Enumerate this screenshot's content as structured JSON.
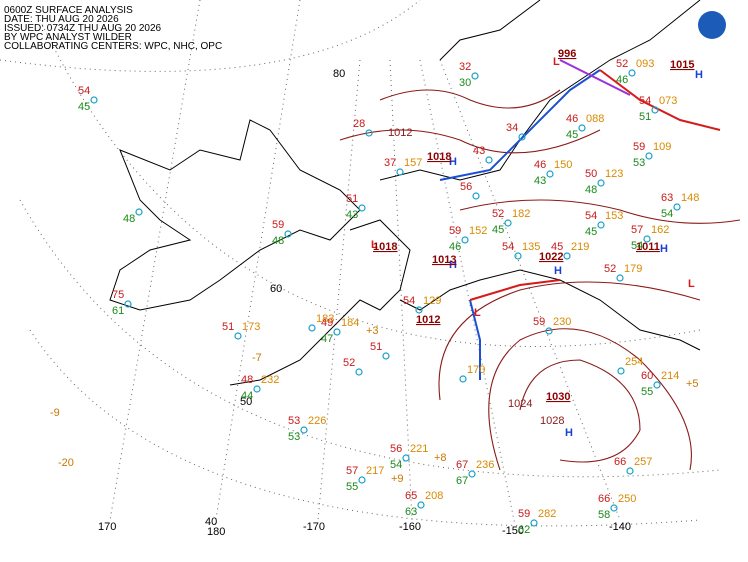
{
  "header": {
    "lines": [
      "0600Z SURFACE ANALYSIS",
      "DATE: THU AUG 20 2026",
      "ISSUED: 0734Z THU AUG 20 2026",
      "BY WPC ANALYST WILDER",
      "COLLABORATING CENTERS: WPC, NHC, OPC"
    ]
  },
  "graticule": {
    "labels": [
      "80",
      "60",
      "50",
      "40",
      "180",
      "170",
      "-170",
      "-160",
      "-150",
      "-140"
    ]
  },
  "pressure_centers": [
    {
      "symbol": "H",
      "value": "1015"
    },
    {
      "symbol": "L",
      "value": "996"
    },
    {
      "symbol": "H",
      "value": "1018"
    },
    {
      "symbol": "L",
      "value": "1018"
    },
    {
      "symbol": "H",
      "value": "1013"
    },
    {
      "symbol": "L",
      "value": "1012"
    },
    {
      "symbol": "H",
      "value": "1022"
    },
    {
      "symbol": "H",
      "value": "1030"
    },
    {
      "symbol": "H",
      "value": "1011"
    },
    {
      "symbol": "L"
    }
  ],
  "isobar_labels": [
    "1012",
    "1024",
    "1028"
  ],
  "tendencies": [
    "-9",
    "-20",
    "-7",
    "+3",
    "+5",
    "+8",
    "+9"
  ],
  "stations": [
    {
      "temp": 54,
      "dewpoint": 45
    },
    {
      "dewpoint": 48
    },
    {
      "temp": 75,
      "dewpoint": 61
    },
    {
      "temp": 51,
      "pressure": "173"
    },
    {
      "pressure": "183"
    },
    {
      "temp": 49,
      "dewpoint": 47,
      "pressure": "184"
    },
    {
      "temp": 48,
      "dewpoint": 44,
      "pressure": "232"
    },
    {
      "temp": 53,
      "dewpoint": 53,
      "pressure": "226"
    },
    {
      "temp": 56,
      "dewpoint": 54,
      "pressure": "221"
    },
    {
      "temp": 57,
      "dewpoint": 55,
      "pressure": "217"
    },
    {
      "temp": 65,
      "dewpoint": 63,
      "pressure": "208"
    },
    {
      "temp": 67,
      "dewpoint": 67,
      "pressure": "236"
    },
    {
      "temp": 59,
      "dewpoint": 62,
      "pressure": "282"
    },
    {
      "temp": 66,
      "dewpoint": 58,
      "pressure": "250"
    },
    {
      "temp": 66,
      "pressure": "257"
    },
    {
      "temp": 60,
      "dewpoint": 55,
      "pressure": "214"
    },
    {
      "pressure": "254"
    },
    {
      "temp": 59,
      "pressure": "230"
    },
    {
      "temp": 52,
      "pressure": "179"
    },
    {
      "temp": 57,
      "dewpoint": 54,
      "pressure": "162"
    },
    {
      "temp": 63,
      "dewpoint": 54,
      "pressure": "148"
    },
    {
      "temp": 54,
      "dewpoint": 45,
      "pressure": "153"
    },
    {
      "temp": 52,
      "dewpoint": 45,
      "pressure": "182"
    },
    {
      "temp": 59,
      "dewpoint": 46,
      "pressure": "152"
    },
    {
      "temp": 54,
      "pressure": "135"
    },
    {
      "temp": 45,
      "pressure": "219"
    },
    {
      "temp": 46,
      "dewpoint": 43,
      "pressure": "150"
    },
    {
      "temp": 50,
      "dewpoint": 48,
      "pressure": "123"
    },
    {
      "temp": 59,
      "dewpoint": 53,
      "pressure": "109"
    },
    {
      "temp": 54,
      "dewpoint": 51,
      "pressure": "073"
    },
    {
      "temp": 52,
      "dewpoint": 46,
      "pressure": "093"
    },
    {
      "temp": 46,
      "dewpoint": 45,
      "pressure": "088"
    },
    {
      "temp": 32,
      "dewpoint": 30
    },
    {
      "temp": 34
    },
    {
      "temp": 43
    },
    {
      "temp": 28
    },
    {
      "temp": 37,
      "pressure": "157"
    },
    {
      "temp": 56
    },
    {
      "temp": 51,
      "dewpoint": 43
    },
    {
      "temp": 59,
      "dewpoint": 48
    },
    {
      "temp": 54,
      "pressure": "129"
    },
    {
      "temp": 52
    },
    {
      "pressure": "170"
    },
    {
      "temp": 51
    }
  ]
}
